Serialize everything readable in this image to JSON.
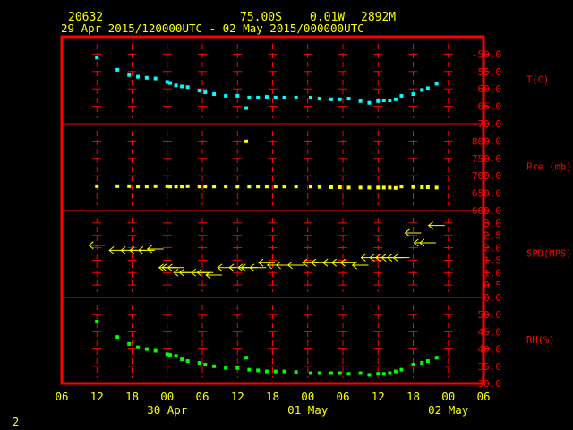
{
  "header": {
    "station_id": "20632",
    "latitude": "75.00S",
    "longitude": "0.01W",
    "elevation": "2892M",
    "time_range": "29 Apr 2015/120000UTC - 02 May 2015/000000UTC"
  },
  "footer": {
    "page_number": "2"
  },
  "colors": {
    "frame": "#ff0000",
    "grid": "#ff0000",
    "axis_text_time": "#ffff00",
    "axis_text_value": "#ff0000",
    "header_text": "#ffff00",
    "temperature": "#00ffff",
    "pressure": "#ffff00",
    "wind": "#ffff00",
    "humidity": "#00ff00"
  },
  "chart_data": {
    "type": "scatter",
    "x_axis": {
      "unit": "hours from 29 Apr 2015 06 UTC",
      "range": [
        0,
        72
      ],
      "tick_labels": [
        "06",
        "12",
        "18",
        "00",
        "06",
        "12",
        "18",
        "00",
        "06",
        "12",
        "18",
        "00",
        "06"
      ],
      "date_labels": [
        {
          "label": "30 Apr",
          "x": 18
        },
        {
          "label": "01 May",
          "x": 42
        },
        {
          "label": "02 May",
          "x": 66
        }
      ]
    },
    "panels": [
      {
        "id": "temperature",
        "label": "T(C)",
        "ylim": [
          -70,
          -45
        ],
        "tick_labels": [
          "-70.0",
          "-65.0",
          "-60.0",
          "-55.0",
          "-50.0"
        ],
        "tick_values": [
          -70,
          -65,
          -60,
          -55,
          -50
        ],
        "points": [
          [
            6,
            -51
          ],
          [
            9.5,
            -54.5
          ],
          [
            11.5,
            -56
          ],
          [
            13,
            -56.5
          ],
          [
            14.5,
            -56.8
          ],
          [
            16,
            -57
          ],
          [
            18,
            -58
          ],
          [
            18.5,
            -58.3
          ],
          [
            19.5,
            -59
          ],
          [
            20.5,
            -59.3
          ],
          [
            21.5,
            -59.5
          ],
          [
            23.5,
            -60.5
          ],
          [
            24.5,
            -61
          ],
          [
            26,
            -61.5
          ],
          [
            28,
            -62
          ],
          [
            30,
            -62
          ],
          [
            31.5,
            -65.5
          ],
          [
            32,
            -62.5
          ],
          [
            33.5,
            -62.5
          ],
          [
            35,
            -62.3
          ],
          [
            36.5,
            -62.5
          ],
          [
            38,
            -62.5
          ],
          [
            40,
            -62.5
          ],
          [
            42.5,
            -62.5
          ],
          [
            44,
            -62.8
          ],
          [
            46,
            -63
          ],
          [
            47.5,
            -63
          ],
          [
            49,
            -62.8
          ],
          [
            51,
            -63.5
          ],
          [
            52.5,
            -64
          ],
          [
            54,
            -63.5
          ],
          [
            55,
            -63.3
          ],
          [
            56,
            -63.3
          ],
          [
            57,
            -63
          ],
          [
            58,
            -62
          ],
          [
            60,
            -61.5
          ],
          [
            61.5,
            -60.3
          ],
          [
            62.5,
            -59.8
          ],
          [
            64,
            -58.5
          ]
        ]
      },
      {
        "id": "pressure",
        "label": "Pre (mb)",
        "ylim": [
          600,
          850
        ],
        "tick_labels": [
          "600.0",
          "650.0",
          "700.0",
          "750.0",
          "800.0"
        ],
        "tick_values": [
          600,
          650,
          700,
          750,
          800
        ],
        "points": [
          [
            6,
            670
          ],
          [
            9.5,
            670
          ],
          [
            11.5,
            670
          ],
          [
            13,
            669
          ],
          [
            14.5,
            669
          ],
          [
            16,
            670
          ],
          [
            18,
            670
          ],
          [
            18.5,
            669
          ],
          [
            19.5,
            669
          ],
          [
            20.5,
            669
          ],
          [
            21.5,
            670
          ],
          [
            23.5,
            669
          ],
          [
            24.5,
            669
          ],
          [
            26,
            669
          ],
          [
            28,
            669
          ],
          [
            30,
            669
          ],
          [
            31.5,
            799
          ],
          [
            32,
            669
          ],
          [
            33.5,
            669
          ],
          [
            35,
            669
          ],
          [
            36.5,
            669
          ],
          [
            38,
            669
          ],
          [
            40,
            669
          ],
          [
            42.5,
            669
          ],
          [
            44,
            668
          ],
          [
            46,
            667
          ],
          [
            47.5,
            667
          ],
          [
            49,
            666
          ],
          [
            51,
            666
          ],
          [
            52.5,
            666
          ],
          [
            54,
            666
          ],
          [
            55,
            666
          ],
          [
            56,
            666
          ],
          [
            57,
            665
          ],
          [
            58,
            669
          ],
          [
            60,
            668
          ],
          [
            61.5,
            667
          ],
          [
            62.5,
            667
          ],
          [
            64,
            666
          ]
        ]
      },
      {
        "id": "wind",
        "label": "SPD(MPS)",
        "ylim": [
          0,
          3.5
        ],
        "tick_labels": [
          "0.0",
          "0.5",
          "1.0",
          "1.5",
          "2.0",
          "2.5",
          "3.0"
        ],
        "tick_values": [
          0,
          0.5,
          1,
          1.5,
          2,
          2.5,
          3
        ],
        "points": [
          [
            6,
            2.1
          ],
          [
            9.5,
            1.9
          ],
          [
            11.5,
            1.9
          ],
          [
            13,
            1.9
          ],
          [
            14.5,
            1.9
          ],
          [
            16,
            1.95
          ],
          [
            18,
            1.2
          ],
          [
            18.5,
            1.2
          ],
          [
            19.5,
            1.2
          ],
          [
            20.5,
            1.0
          ],
          [
            21.5,
            1.0
          ],
          [
            23.5,
            1.0
          ],
          [
            24.5,
            1.0
          ],
          [
            26,
            0.9
          ],
          [
            28,
            1.2
          ],
          [
            30,
            1.2
          ],
          [
            31.5,
            1.2
          ],
          [
            32,
            1.2
          ],
          [
            33.5,
            1.2
          ],
          [
            35,
            1.4
          ],
          [
            36.5,
            1.3
          ],
          [
            38,
            1.3
          ],
          [
            40,
            1.3
          ],
          [
            42.5,
            1.4
          ],
          [
            44,
            1.4
          ],
          [
            46,
            1.4
          ],
          [
            47.5,
            1.4
          ],
          [
            49,
            1.4
          ],
          [
            51,
            1.3
          ],
          [
            52.5,
            1.6
          ],
          [
            54,
            1.6
          ],
          [
            55,
            1.6
          ],
          [
            56,
            1.6
          ],
          [
            57,
            1.6
          ],
          [
            58,
            1.6
          ],
          [
            60,
            2.6
          ],
          [
            61.5,
            2.2
          ],
          [
            62.5,
            2.2
          ],
          [
            64,
            2.9
          ]
        ]
      },
      {
        "id": "humidity",
        "label": "RH(%)",
        "ylim": [
          30,
          55
        ],
        "tick_labels": [
          "30.0",
          "35.0",
          "40.0",
          "45.0",
          "50.0"
        ],
        "tick_values": [
          30,
          35,
          40,
          45,
          50
        ],
        "points": [
          [
            6,
            48
          ],
          [
            9.5,
            43.5
          ],
          [
            11.5,
            41.5
          ],
          [
            13,
            40.5
          ],
          [
            14.5,
            40
          ],
          [
            16,
            39.5
          ],
          [
            18,
            38.5
          ],
          [
            18.5,
            38.3
          ],
          [
            19.5,
            38
          ],
          [
            20.5,
            37
          ],
          [
            21.5,
            36.5
          ],
          [
            23.5,
            36
          ],
          [
            24.5,
            35.5
          ],
          [
            26,
            35
          ],
          [
            28,
            34.5
          ],
          [
            30,
            34.5
          ],
          [
            31.5,
            37.5
          ],
          [
            32,
            34
          ],
          [
            33.5,
            33.8
          ],
          [
            35,
            33.5
          ],
          [
            36.5,
            33.5
          ],
          [
            38,
            33.5
          ],
          [
            40,
            33.3
          ],
          [
            42.5,
            33
          ],
          [
            44,
            33
          ],
          [
            46,
            33
          ],
          [
            47.5,
            33
          ],
          [
            49,
            32.8
          ],
          [
            51,
            33
          ],
          [
            52.5,
            32.5
          ],
          [
            54,
            32.8
          ],
          [
            55,
            32.8
          ],
          [
            56,
            33
          ],
          [
            57,
            33.5
          ],
          [
            58,
            34
          ],
          [
            60,
            35.5
          ],
          [
            61.5,
            36
          ],
          [
            62.5,
            36.5
          ],
          [
            64,
            37.5
          ]
        ]
      }
    ]
  }
}
